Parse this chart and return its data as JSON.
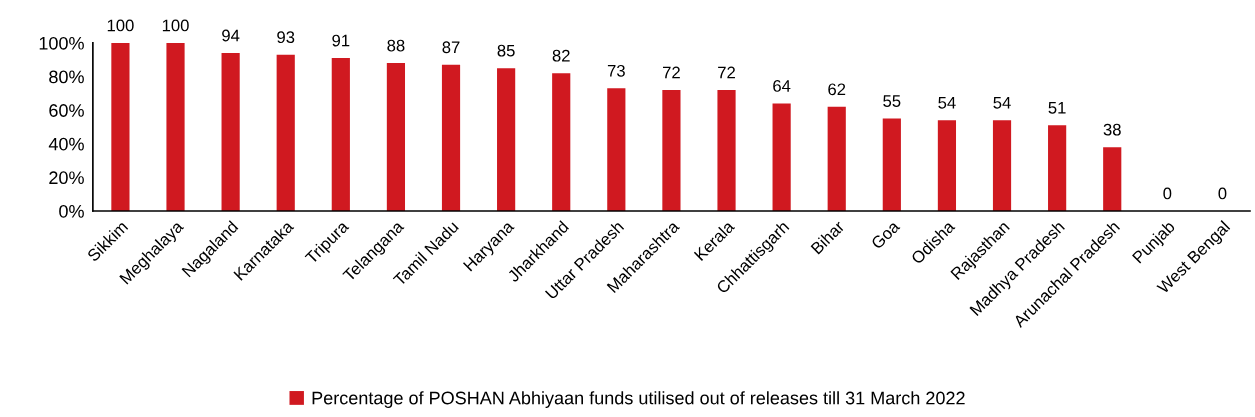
{
  "chart_data": {
    "type": "bar",
    "categories": [
      "Sikkim",
      "Meghalaya",
      "Nagaland",
      "Karnataka",
      "Tripura",
      "Telangana",
      "Tamil Nadu",
      "Haryana",
      "Jharkhand",
      "Uttar Pradesh",
      "Maharashtra",
      "Kerala",
      "Chhattisgarh",
      "Bihar",
      "Goa",
      "Odisha",
      "Rajasthan",
      "Madhya Pradesh",
      "Arunachal Pradesh",
      "Punjab",
      "West Bengal"
    ],
    "series": [
      {
        "name": "Percentage of POSHAN Abhiyaan funds utilised out of releases till 31 March 2022",
        "color": "#d01920",
        "values": [
          100,
          100,
          94,
          93,
          91,
          88,
          87,
          85,
          82,
          73,
          72,
          72,
          64,
          62,
          55,
          54,
          54,
          51,
          38,
          0,
          0
        ]
      }
    ],
    "ylim": [
      0,
      100
    ],
    "yticks": [
      {
        "value": 0,
        "label": "0%"
      },
      {
        "value": 20,
        "label": "20%"
      },
      {
        "value": 40,
        "label": "40%"
      },
      {
        "value": 60,
        "label": "60%"
      },
      {
        "value": 80,
        "label": "80%"
      },
      {
        "value": 100,
        "label": "100%"
      }
    ],
    "data_labels": true,
    "legend": "bottom",
    "grid": false
  }
}
